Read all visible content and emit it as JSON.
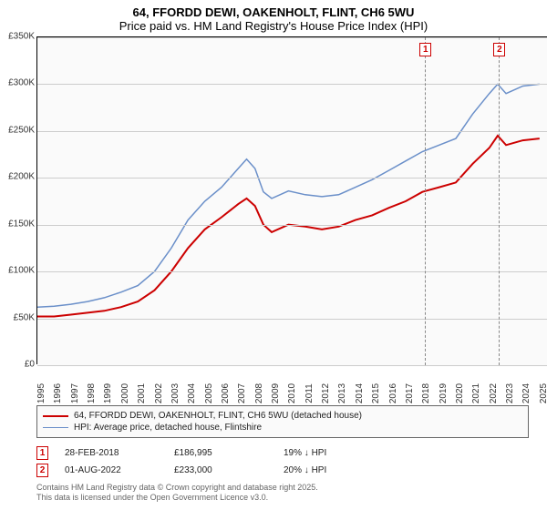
{
  "title": {
    "line1": "64, FFORDD DEWI, OAKENHOLT, FLINT, CH6 5WU",
    "line2": "Price paid vs. HM Land Registry's House Price Index (HPI)"
  },
  "chart": {
    "type": "line",
    "background_color": "#fafafa",
    "grid_color": "#cccccc",
    "border_color": "#000000",
    "ylim": [
      0,
      350000
    ],
    "y_ticks": [
      0,
      50000,
      100000,
      150000,
      200000,
      250000,
      300000,
      350000
    ],
    "y_tick_labels": [
      "£0",
      "£50K",
      "£100K",
      "£150K",
      "£200K",
      "£250K",
      "£300K",
      "£350K"
    ],
    "xlim": [
      1995,
      2025.5
    ],
    "x_ticks": [
      1995,
      1996,
      1997,
      1998,
      1999,
      2000,
      2001,
      2002,
      2003,
      2004,
      2005,
      2006,
      2007,
      2008,
      2009,
      2010,
      2011,
      2012,
      2013,
      2014,
      2015,
      2016,
      2017,
      2018,
      2019,
      2020,
      2021,
      2022,
      2023,
      2024,
      2025
    ],
    "series": [
      {
        "name": "property",
        "label": "64, FFORDD DEWI, OAKENHOLT, FLINT, CH6 5WU (detached house)",
        "color": "#cc0000",
        "line_width": 2,
        "points": [
          [
            1995,
            52000
          ],
          [
            1996,
            52000
          ],
          [
            1997,
            54000
          ],
          [
            1998,
            56000
          ],
          [
            1999,
            58000
          ],
          [
            2000,
            62000
          ],
          [
            2001,
            68000
          ],
          [
            2002,
            80000
          ],
          [
            2003,
            100000
          ],
          [
            2004,
            125000
          ],
          [
            2005,
            145000
          ],
          [
            2006,
            158000
          ],
          [
            2007,
            172000
          ],
          [
            2007.5,
            178000
          ],
          [
            2008,
            170000
          ],
          [
            2008.5,
            150000
          ],
          [
            2009,
            142000
          ],
          [
            2010,
            150000
          ],
          [
            2011,
            148000
          ],
          [
            2012,
            145000
          ],
          [
            2013,
            148000
          ],
          [
            2014,
            155000
          ],
          [
            2015,
            160000
          ],
          [
            2016,
            168000
          ],
          [
            2017,
            175000
          ],
          [
            2018,
            185000
          ],
          [
            2019,
            190000
          ],
          [
            2020,
            195000
          ],
          [
            2021,
            215000
          ],
          [
            2022,
            232000
          ],
          [
            2022.5,
            245000
          ],
          [
            2023,
            235000
          ],
          [
            2024,
            240000
          ],
          [
            2025,
            242000
          ]
        ]
      },
      {
        "name": "hpi",
        "label": "HPI: Average price, detached house, Flintshire",
        "color": "#6a8fc9",
        "line_width": 1.5,
        "points": [
          [
            1995,
            62000
          ],
          [
            1996,
            63000
          ],
          [
            1997,
            65000
          ],
          [
            1998,
            68000
          ],
          [
            1999,
            72000
          ],
          [
            2000,
            78000
          ],
          [
            2001,
            85000
          ],
          [
            2002,
            100000
          ],
          [
            2003,
            125000
          ],
          [
            2004,
            155000
          ],
          [
            2005,
            175000
          ],
          [
            2006,
            190000
          ],
          [
            2007,
            210000
          ],
          [
            2007.5,
            220000
          ],
          [
            2008,
            210000
          ],
          [
            2008.5,
            185000
          ],
          [
            2009,
            178000
          ],
          [
            2010,
            186000
          ],
          [
            2011,
            182000
          ],
          [
            2012,
            180000
          ],
          [
            2013,
            182000
          ],
          [
            2014,
            190000
          ],
          [
            2015,
            198000
          ],
          [
            2016,
            208000
          ],
          [
            2017,
            218000
          ],
          [
            2018,
            228000
          ],
          [
            2019,
            235000
          ],
          [
            2020,
            242000
          ],
          [
            2021,
            268000
          ],
          [
            2022,
            290000
          ],
          [
            2022.5,
            300000
          ],
          [
            2023,
            290000
          ],
          [
            2024,
            298000
          ],
          [
            2025,
            300000
          ]
        ]
      }
    ],
    "markers": [
      {
        "id": "1",
        "x": 2018.16,
        "color": "#cc0000"
      },
      {
        "id": "2",
        "x": 2022.58,
        "color": "#cc0000"
      }
    ]
  },
  "legend": {
    "items": [
      {
        "color": "#cc0000",
        "label": "64, FFORDD DEWI, OAKENHOLT, FLINT, CH6 5WU (detached house)",
        "width": 2
      },
      {
        "color": "#6a8fc9",
        "label": "HPI: Average price, detached house, Flintshire",
        "width": 1.5
      }
    ]
  },
  "data_points": [
    {
      "marker": "1",
      "color": "#cc0000",
      "date": "28-FEB-2018",
      "price": "£186,995",
      "delta": "19% ↓ HPI"
    },
    {
      "marker": "2",
      "color": "#cc0000",
      "date": "01-AUG-2022",
      "price": "£233,000",
      "delta": "20% ↓ HPI"
    }
  ],
  "footer": {
    "line1": "Contains HM Land Registry data © Crown copyright and database right 2025.",
    "line2": "This data is licensed under the Open Government Licence v3.0."
  }
}
